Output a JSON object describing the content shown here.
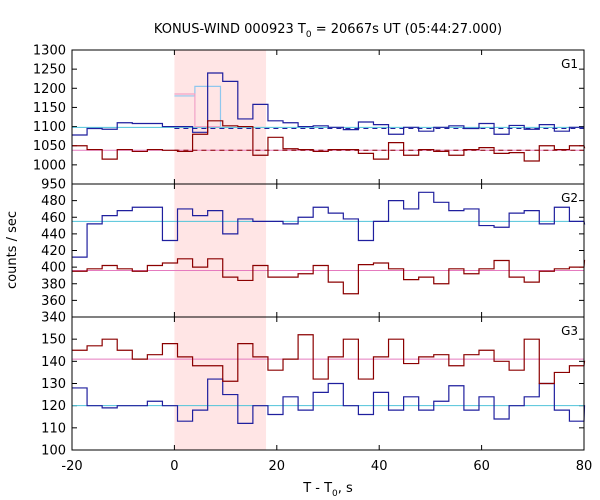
{
  "chart_data": {
    "type": "line",
    "title": "KONUS-WIND 000923 T",
    "title_sub": "0",
    "title_rest": " = 20667s UT (05:44:27.000)",
    "xlabel": "T - T",
    "xlabel_sub": "0",
    "xlabel_rest": ", s",
    "ylabel": "counts / sec",
    "xlim": [
      -20,
      80
    ],
    "x_ticks": [
      -20,
      0,
      20,
      40,
      60,
      80
    ],
    "x_tick_labels": [
      "-20",
      "0",
      "20",
      "40",
      "60",
      "80"
    ],
    "shaded_interval": [
      0,
      17.9
    ],
    "bin_width": 2.944,
    "bin_start": -20,
    "colors": {
      "blue": "#1f1f9e",
      "red": "#8b0000",
      "cyan": "#4fc3d9",
      "pink": "#e57bbf",
      "shade": "#ffe5e5",
      "light_blue_step": "#8fc7ee",
      "light_pink_step": "#f2a3c8"
    },
    "panels": [
      {
        "label": "G1",
        "ylim": [
          950,
          1300
        ],
        "y_ticks": [
          950,
          1000,
          1050,
          1100,
          1150,
          1200,
          1250,
          1300
        ],
        "y_tick_labels": [
          "950",
          "1000",
          "1050",
          "1100",
          "1150",
          "1200",
          "1250",
          "1300"
        ],
        "series": [
          {
            "color": "blue",
            "values": [
              1078,
              1095,
              1093,
              1110,
              1108,
              1108,
              1100,
              1100,
              1085,
              1240,
              1218,
              1120,
              1158,
              1115,
              1110,
              1100,
              1102,
              1098,
              1092,
              1112,
              1105,
              1080,
              1098,
              1088,
              1098,
              1102,
              1095,
              1108,
              1080,
              1103,
              1093,
              1105,
              1088,
              1098,
              1098
            ]
          },
          {
            "color": "red",
            "values": [
              1050,
              1040,
              1015,
              1040,
              1035,
              1040,
              1038,
              1035,
              1080,
              1115,
              1102,
              1100,
              1025,
              1072,
              1042,
              1040,
              1035,
              1040,
              1040,
              1030,
              1015,
              1058,
              1025,
              1040,
              1035,
              1025,
              1040,
              1045,
              1030,
              1032,
              1010,
              1050,
              1040,
              1050,
              1045
            ]
          }
        ],
        "step_series": [
          {
            "color": "light_blue_step",
            "x": [
              0,
              4,
              9
            ],
            "values": [
              1180,
              1205,
              1100
            ]
          },
          {
            "color": "light_pink_step",
            "x": [
              0,
              4,
              9
            ],
            "values": [
              1185,
              1100,
              1100
            ]
          }
        ],
        "ref_lines": [
          {
            "color": "cyan",
            "y": 1098,
            "dashed": false
          },
          {
            "color": "pink",
            "y": 1038,
            "dashed": false
          },
          {
            "color": "blue",
            "y": 1095,
            "dashed": true,
            "x_start": 0
          },
          {
            "color": "red",
            "y": 1038,
            "dashed": true,
            "x_start": 0
          }
        ]
      },
      {
        "label": "G2",
        "ylim": [
          340,
          500
        ],
        "y_ticks": [
          340,
          360,
          380,
          400,
          420,
          440,
          460,
          480
        ],
        "y_tick_labels": [
          "340",
          "360",
          "380",
          "400",
          "420",
          "440",
          "460",
          "480"
        ],
        "series": [
          {
            "color": "blue",
            "values": [
              412,
              452,
              462,
              468,
              472,
              472,
              432,
              470,
              462,
              468,
              440,
              458,
              455,
              455,
              452,
              460,
              472,
              465,
              458,
              432,
              455,
              480,
              470,
              490,
              478,
              468,
              470,
              450,
              448,
              465,
              468,
              452,
              472,
              455,
              452
            ]
          },
          {
            "color": "red",
            "values": [
              395,
              398,
              402,
              398,
              395,
              402,
              405,
              410,
              400,
              410,
              388,
              384,
              402,
              388,
              388,
              392,
              402,
              382,
              368,
              403,
              405,
              398,
              385,
              388,
              380,
              398,
              392,
              398,
              408,
              388,
              382,
              395,
              398,
              400,
              408
            ]
          }
        ],
        "ref_lines": [
          {
            "color": "cyan",
            "y": 455,
            "dashed": false
          },
          {
            "color": "pink",
            "y": 396,
            "dashed": false
          }
        ]
      },
      {
        "label": "G3",
        "ylim": [
          100,
          160
        ],
        "y_ticks": [
          100,
          110,
          120,
          130,
          140,
          150
        ],
        "y_tick_labels": [
          "100",
          "110",
          "120",
          "130",
          "140",
          "150"
        ],
        "series": [
          {
            "color": "blue",
            "values": [
              128,
              120,
              119,
              120,
              120,
              122,
              120,
              113,
              118,
              132,
              125,
              112,
              120,
              116,
              124,
              118,
              126,
              130,
              120,
              116,
              126,
              118,
              124,
              118,
              122,
              129,
              118,
              124,
              114,
              120,
              124,
              130,
              118,
              113,
              120
            ]
          },
          {
            "color": "red",
            "values": [
              145,
              147,
              150,
              145,
              141,
              143,
              148,
              142,
              138,
              138,
              131,
              148,
              142,
              136,
              141,
              152,
              132,
              142,
              150,
              132,
              142,
              150,
              139,
              142,
              143,
              138,
              143,
              145,
              140,
              136,
              150,
              130,
              135,
              138,
              140
            ]
          }
        ],
        "ref_lines": [
          {
            "color": "cyan",
            "y": 120,
            "dashed": false
          },
          {
            "color": "pink",
            "y": 141,
            "dashed": false
          }
        ]
      }
    ]
  }
}
